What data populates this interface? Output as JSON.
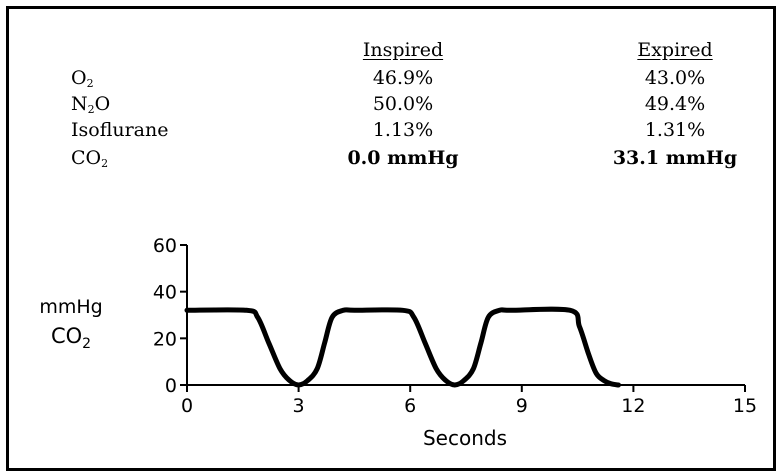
{
  "table": {
    "headers": {
      "inspired": "Inspired",
      "expired": "Expired"
    },
    "rows": [
      {
        "gas_main": "O",
        "gas_sub": "2",
        "gas_tail": "",
        "inspired": "46.9%",
        "expired": "43.0%"
      },
      {
        "gas_main": "N",
        "gas_sub": "2",
        "gas_tail": "O",
        "inspired": "50.0%",
        "expired": "49.4%"
      },
      {
        "gas_main": "Isoflurane",
        "gas_sub": "",
        "gas_tail": "",
        "inspired": "1.13%",
        "expired": "1.31%"
      },
      {
        "gas_main": "CO",
        "gas_sub": "2",
        "gas_tail": "",
        "inspired": "0.0 mmHg",
        "expired": "33.1 mmHg"
      }
    ]
  },
  "chart_data": {
    "type": "line",
    "xlabel": "Seconds",
    "ylabel_line1": "mmHg",
    "ylabel_line2_main": "CO",
    "ylabel_line2_sub": "2",
    "xlim": [
      0,
      15
    ],
    "ylim": [
      0,
      60
    ],
    "xticks": [
      0,
      3,
      6,
      9,
      12,
      15
    ],
    "yticks": [
      0,
      20,
      40,
      60
    ],
    "grid": false,
    "line_color": "#000000",
    "x": [
      0,
      1.6,
      1.9,
      2.2,
      2.5,
      2.75,
      3.0,
      3.25,
      3.5,
      3.7,
      3.9,
      4.2,
      4.5,
      5.8,
      6.1,
      6.4,
      6.7,
      6.95,
      7.2,
      7.45,
      7.7,
      7.9,
      8.1,
      8.4,
      8.7,
      10.3,
      10.55,
      10.8,
      11.0,
      11.2,
      11.4,
      11.6
    ],
    "y": [
      32,
      32,
      29,
      18,
      7,
      2,
      0,
      2,
      7,
      18,
      29,
      32,
      32,
      32,
      29,
      18,
      7,
      2,
      0,
      2,
      7,
      18,
      29,
      32,
      32,
      32,
      25,
      13,
      5,
      2,
      0.5,
      0
    ]
  }
}
